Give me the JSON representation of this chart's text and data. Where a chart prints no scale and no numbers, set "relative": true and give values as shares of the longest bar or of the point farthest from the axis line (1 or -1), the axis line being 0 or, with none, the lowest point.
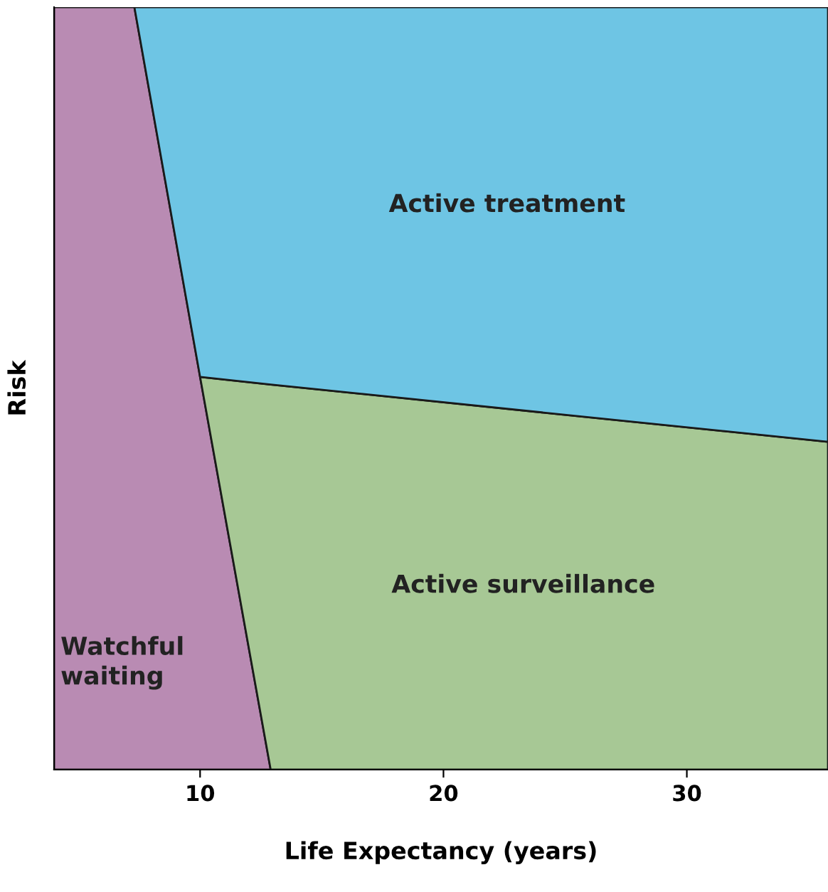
{
  "chart_data": {
    "type": "area",
    "stacked": true,
    "relative": true,
    "xlabel": "Life Expectancy (years)",
    "ylabel": "Risk",
    "x": [
      4,
      7.3,
      10,
      12.9,
      35.8
    ],
    "xlim": [
      4,
      35.8
    ],
    "xticks": [
      10,
      20,
      30
    ],
    "series": [
      {
        "name": "Watchful waiting",
        "color": "#b98bb3",
        "values": [
          1,
          1,
          0.515,
          0,
          null
        ]
      },
      {
        "name": "Active surveillance",
        "color": "#a7c895",
        "values": [
          null,
          null,
          0,
          0.505,
          0.43
        ]
      },
      {
        "name": "Active treatment",
        "color": "#6ec5e4",
        "values": [
          null,
          0,
          0.485,
          0.495,
          0.57
        ]
      }
    ],
    "grid": false,
    "legend": false
  }
}
